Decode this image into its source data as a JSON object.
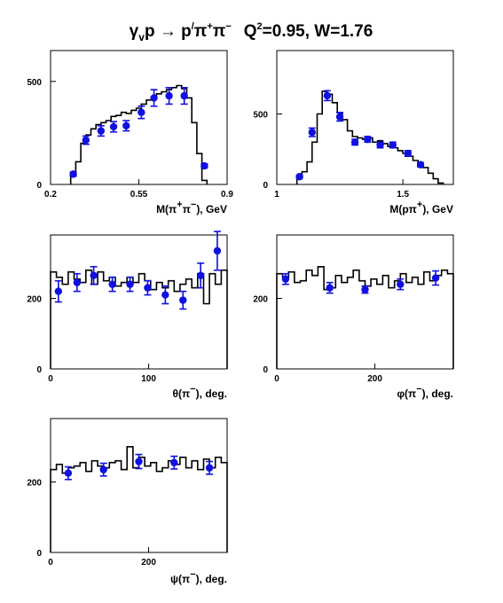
{
  "title": {
    "g_base": "γ",
    "g_sub": "v",
    "p1": "p ",
    "arrow": "→",
    "p2": " p",
    "prime": "/",
    "pi1": "π",
    "pi1_sup": "+",
    "pi2": "π",
    "pi2_sup": "−",
    "q_base": "Q",
    "q_sup": "2",
    "q_rest": "=0.95, W=1.76"
  },
  "colors": {
    "data": "#1010e0",
    "histogram": "#000000",
    "axes": "#000000"
  },
  "chart_data": [
    {
      "type": "line",
      "xlabel": {
        "var": "M(π",
        "sup1": "+",
        "mid": "π",
        "sup2": "−",
        "unit": "), GeV"
      },
      "xlim": [
        0.2,
        0.9
      ],
      "ylim": [
        0,
        650
      ],
      "xticks": [
        0.2,
        0.55,
        0.9
      ],
      "xtick_labels": [
        "0.2",
        "0.55",
        "0.9"
      ],
      "yticks": [
        0,
        500
      ],
      "ytick_labels": [
        "0",
        "500"
      ],
      "histogram": {
        "edges": [
          0.28,
          0.3,
          0.32,
          0.34,
          0.36,
          0.38,
          0.4,
          0.42,
          0.44,
          0.46,
          0.48,
          0.5,
          0.52,
          0.54,
          0.56,
          0.58,
          0.6,
          0.62,
          0.64,
          0.66,
          0.68,
          0.7,
          0.72,
          0.74,
          0.76,
          0.78,
          0.8,
          0.82
        ],
        "values": [
          40,
          110,
          200,
          240,
          270,
          290,
          300,
          310,
          330,
          335,
          350,
          345,
          360,
          370,
          390,
          410,
          420,
          440,
          450,
          460,
          470,
          480,
          465,
          420,
          300,
          150,
          20
        ]
      },
      "points": {
        "x": [
          0.29,
          0.34,
          0.4,
          0.45,
          0.5,
          0.56,
          0.61,
          0.67,
          0.73,
          0.81
        ],
        "y": [
          50,
          215,
          260,
          280,
          285,
          350,
          420,
          430,
          430,
          90
        ],
        "err": [
          10,
          20,
          25,
          25,
          25,
          30,
          40,
          40,
          40,
          10
        ]
      }
    },
    {
      "type": "line",
      "xlabel": {
        "var": "M(pπ",
        "sup1": "+",
        "mid": "",
        "sup2": "",
        "unit": "), GeV"
      },
      "xlim": [
        1.0,
        1.7
      ],
      "ylim": [
        0,
        950
      ],
      "xticks": [
        1.0,
        1.5
      ],
      "xtick_labels": [
        "1",
        "1.5"
      ],
      "yticks": [
        0,
        500
      ],
      "ytick_labels": [
        "0",
        "500"
      ],
      "histogram": {
        "edges": [
          1.08,
          1.1,
          1.12,
          1.14,
          1.16,
          1.18,
          1.2,
          1.22,
          1.24,
          1.26,
          1.28,
          1.3,
          1.32,
          1.34,
          1.36,
          1.38,
          1.4,
          1.42,
          1.44,
          1.46,
          1.48,
          1.5,
          1.52,
          1.54,
          1.56,
          1.58,
          1.6,
          1.62,
          1.64,
          1.66
        ],
        "values": [
          40,
          90,
          160,
          300,
          500,
          660,
          640,
          580,
          510,
          460,
          380,
          340,
          330,
          320,
          330,
          300,
          310,
          290,
          270,
          260,
          240,
          220,
          200,
          170,
          150,
          120,
          80,
          40,
          10
        ]
      },
      "points": {
        "x": [
          1.09,
          1.14,
          1.2,
          1.25,
          1.31,
          1.36,
          1.41,
          1.46,
          1.52,
          1.57
        ],
        "y": [
          55,
          370,
          630,
          480,
          300,
          320,
          280,
          280,
          220,
          140
        ],
        "err": [
          10,
          30,
          35,
          30,
          20,
          20,
          20,
          20,
          20,
          15
        ]
      }
    },
    {
      "type": "line",
      "xlabel": {
        "var": "θ(π",
        "sup1": "−",
        "mid": "",
        "sup2": "",
        "unit": "), deg."
      },
      "xlim": [
        0,
        180
      ],
      "ylim": [
        0,
        380
      ],
      "xticks": [
        0,
        100
      ],
      "xtick_labels": [
        "0",
        "100"
      ],
      "yticks": [
        0,
        200
      ],
      "ytick_labels": [
        "0",
        "200"
      ],
      "histogram": {
        "edges": [
          0,
          6,
          12,
          18,
          24,
          30,
          36,
          42,
          48,
          54,
          60,
          66,
          72,
          78,
          84,
          90,
          96,
          102,
          108,
          114,
          120,
          126,
          132,
          138,
          144,
          150,
          156,
          162,
          168,
          174,
          180
        ],
        "values": [
          275,
          260,
          240,
          275,
          255,
          245,
          280,
          240,
          275,
          250,
          260,
          235,
          245,
          260,
          245,
          270,
          250,
          225,
          245,
          230,
          250,
          220,
          240,
          255,
          230,
          270,
          185,
          270,
          240,
          280
        ]
      },
      "points": {
        "x": [
          8,
          27,
          44,
          63,
          81,
          99,
          117,
          135,
          153,
          170
        ],
        "y": [
          220,
          245,
          265,
          240,
          240,
          230,
          210,
          195,
          265,
          335
        ],
        "err": [
          30,
          25,
          25,
          20,
          20,
          20,
          25,
          25,
          35,
          55
        ]
      }
    },
    {
      "type": "line",
      "xlabel": {
        "var": "φ(π",
        "sup1": "−",
        "mid": "",
        "sup2": "",
        "unit": "), deg."
      },
      "xlim": [
        0,
        360
      ],
      "ylim": [
        0,
        380
      ],
      "xticks": [
        0,
        200
      ],
      "xtick_labels": [
        "0",
        "200"
      ],
      "yticks": [
        0,
        200
      ],
      "ytick_labels": [
        "0",
        "200"
      ],
      "histogram": {
        "edges": [
          0,
          12,
          24,
          36,
          48,
          60,
          72,
          84,
          96,
          108,
          120,
          132,
          144,
          156,
          168,
          180,
          192,
          204,
          216,
          228,
          240,
          252,
          264,
          276,
          288,
          300,
          312,
          324,
          336,
          348,
          360
        ],
        "values": [
          270,
          260,
          275,
          245,
          250,
          280,
          265,
          290,
          225,
          230,
          265,
          245,
          260,
          280,
          250,
          235,
          255,
          240,
          265,
          230,
          250,
          270,
          245,
          260,
          240,
          275,
          250,
          265,
          280,
          270
        ]
      },
      "points": {
        "x": [
          18,
          108,
          180,
          252,
          324
        ],
        "y": [
          255,
          230,
          225,
          240,
          258
        ],
        "err": [
          15,
          15,
          10,
          15,
          20
        ]
      }
    },
    {
      "type": "line",
      "xlabel": {
        "var": "ψ(π",
        "sup1": "−",
        "mid": "",
        "sup2": "",
        "unit": "), deg."
      },
      "xlim": [
        0,
        360
      ],
      "ylim": [
        0,
        380
      ],
      "xticks": [
        0,
        200
      ],
      "xtick_labels": [
        "0",
        "200"
      ],
      "yticks": [
        0,
        200
      ],
      "ytick_labels": [
        "0",
        "200"
      ],
      "histogram": {
        "edges": [
          0,
          12,
          24,
          36,
          48,
          60,
          72,
          84,
          96,
          108,
          120,
          132,
          144,
          156,
          168,
          180,
          192,
          204,
          216,
          228,
          240,
          252,
          264,
          276,
          288,
          300,
          312,
          324,
          336,
          348,
          360
        ],
        "values": [
          235,
          250,
          225,
          240,
          245,
          255,
          230,
          260,
          245,
          240,
          255,
          260,
          235,
          300,
          240,
          270,
          245,
          255,
          230,
          240,
          260,
          250,
          270,
          240,
          260,
          235,
          265,
          240,
          270,
          255
        ]
      },
      "points": {
        "x": [
          36,
          108,
          180,
          252,
          324
        ],
        "y": [
          225,
          235,
          258,
          255,
          240
        ],
        "err": [
          18,
          18,
          20,
          18,
          18
        ]
      }
    }
  ]
}
